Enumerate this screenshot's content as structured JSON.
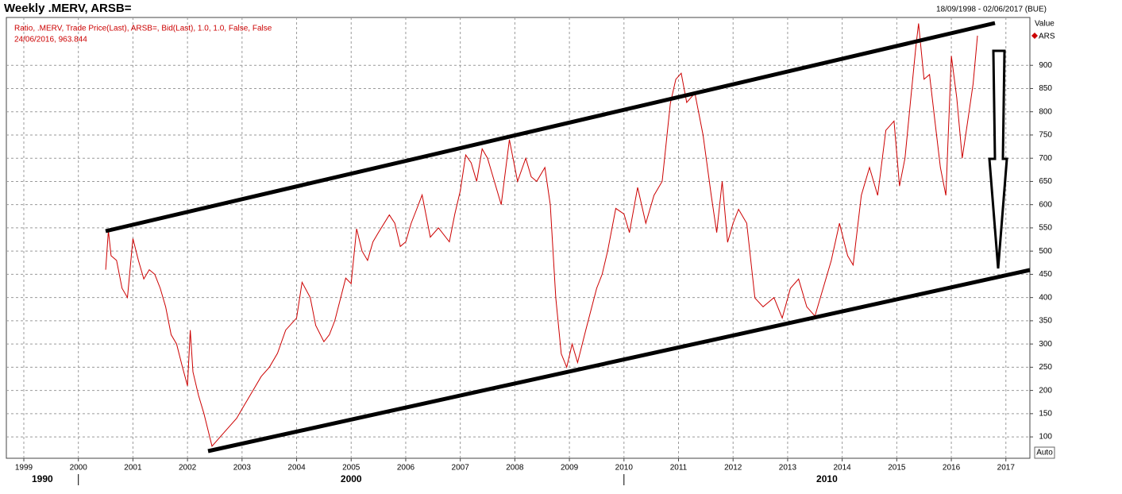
{
  "chart_data": {
    "type": "line",
    "title": "Weekly .MERV, ARSB=",
    "date_range": "18/09/1998 - 02/06/2017 (BUE)",
    "legend_text": "Ratio, .MERV, Trade Price(Last), ARSB=, Bid(Last),  1.0, 1.0, False, False",
    "last_point_label": "24/06/2016, 963.844",
    "y_axis_label": "Value",
    "scale_mode": "Auto",
    "grid": true,
    "xlim": [
      1998.68,
      2017.44
    ],
    "xticks": [
      1999,
      2000,
      2001,
      2002,
      2003,
      2004,
      2005,
      2006,
      2007,
      2008,
      2009,
      2010,
      2011,
      2012,
      2013,
      2014,
      2015,
      2016,
      2017
    ],
    "decades": [
      1990,
      2000,
      2010
    ],
    "ylim": [
      54,
      1003
    ],
    "yticks": [
      100,
      150,
      200,
      250,
      300,
      350,
      400,
      450,
      500,
      550,
      600,
      650,
      700,
      750,
      800,
      850,
      900
    ],
    "series": [
      {
        "name": "ARS",
        "color": "#cc0000",
        "x": [
          2000.5,
          2000.55,
          2000.6,
          2000.7,
          2000.8,
          2000.9,
          2001.0,
          2001.1,
          2001.2,
          2001.3,
          2001.4,
          2001.5,
          2001.6,
          2001.7,
          2001.8,
          2001.9,
          2002.0,
          2002.05,
          2002.1,
          2002.2,
          2002.3,
          2002.45,
          2002.6,
          2002.75,
          2002.9,
          2003.0,
          2003.2,
          2003.35,
          2003.5,
          2003.65,
          2003.8,
          2004.0,
          2004.1,
          2004.25,
          2004.35,
          2004.5,
          2004.6,
          2004.7,
          2004.9,
          2005.0,
          2005.1,
          2005.2,
          2005.3,
          2005.4,
          2005.5,
          2005.7,
          2005.8,
          2005.9,
          2006.0,
          2006.1,
          2006.2,
          2006.3,
          2006.45,
          2006.6,
          2006.8,
          2006.9,
          2007.0,
          2007.1,
          2007.2,
          2007.3,
          2007.4,
          2007.5,
          2007.6,
          2007.75,
          2007.9,
          2008.05,
          2008.2,
          2008.3,
          2008.4,
          2008.55,
          2008.65,
          2008.75,
          2008.85,
          2008.95,
          2009.05,
          2009.15,
          2009.3,
          2009.5,
          2009.6,
          2009.7,
          2009.85,
          2010.0,
          2010.1,
          2010.25,
          2010.4,
          2010.55,
          2010.7,
          2010.85,
          2010.95,
          2011.05,
          2011.15,
          2011.3,
          2011.45,
          2011.6,
          2011.7,
          2011.8,
          2011.9,
          2012.0,
          2012.1,
          2012.25,
          2012.4,
          2012.55,
          2012.75,
          2012.9,
          2013.05,
          2013.2,
          2013.35,
          2013.5,
          2013.65,
          2013.8,
          2013.95,
          2014.1,
          2014.2,
          2014.35,
          2014.5,
          2014.65,
          2014.8,
          2014.95,
          2015.05,
          2015.15,
          2015.25,
          2015.35,
          2015.4,
          2015.5,
          2015.6,
          2015.7,
          2015.8,
          2015.9,
          2016.0,
          2016.1,
          2016.2,
          2016.3,
          2016.4,
          2016.48
        ],
        "values": [
          460,
          544,
          490,
          480,
          420,
          400,
          527,
          480,
          440,
          460,
          450,
          420,
          380,
          320,
          300,
          254,
          210,
          330,
          240,
          190,
          151,
          80,
          100,
          120,
          140,
          160,
          200,
          230,
          250,
          280,
          330,
          356,
          433,
          400,
          340,
          305,
          320,
          350,
          442,
          430,
          548,
          500,
          480,
          520,
          540,
          578,
          560,
          510,
          520,
          560,
          590,
          621,
          530,
          550,
          520,
          580,
          630,
          707,
          690,
          650,
          720,
          700,
          660,
          600,
          740,
          650,
          700,
          660,
          650,
          680,
          600,
          400,
          279,
          250,
          300,
          260,
          330,
          420,
          450,
          500,
          592,
          580,
          540,
          637,
          560,
          620,
          650,
          818,
          870,
          883,
          820,
          840,
          750,
          620,
          540,
          650,
          519,
          560,
          590,
          560,
          399,
          380,
          400,
          356,
          420,
          440,
          380,
          360,
          420,
          480,
          560,
          490,
          470,
          620,
          680,
          620,
          760,
          780,
          640,
          700,
          820,
          940,
          990,
          870,
          880,
          780,
          680,
          620,
          920,
          830,
          700,
          780,
          860,
          963.844
        ]
      }
    ]
  }
}
